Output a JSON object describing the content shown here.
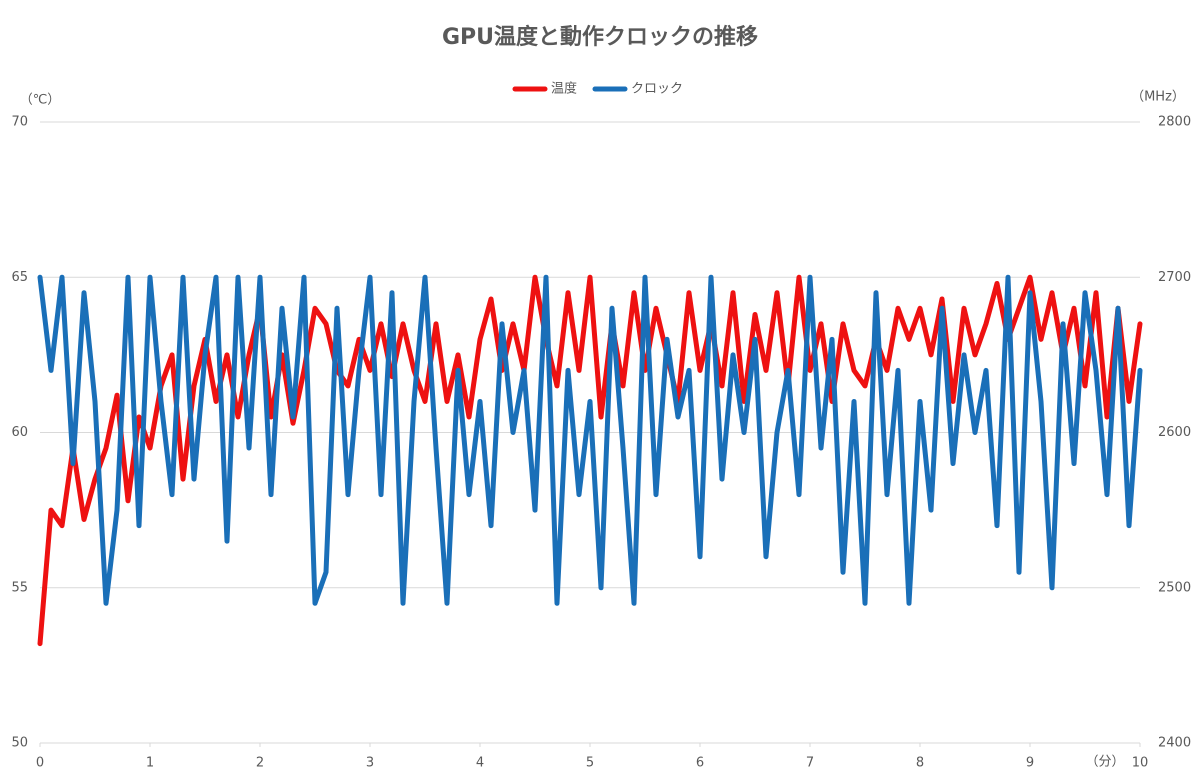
{
  "chart_data": {
    "type": "line",
    "title": "GPU温度と動作クロックの推移",
    "y_label": "（℃）",
    "y2_label": "（MHz）",
    "x_label": "（分）",
    "legend": "top",
    "grid": true,
    "xlim": [
      0,
      10
    ],
    "xticks": [
      0,
      1,
      2,
      3,
      4,
      5,
      6,
      7,
      8,
      9,
      10
    ],
    "ylim": [
      50,
      70
    ],
    "yticks": [
      50,
      55,
      60,
      65,
      70
    ],
    "y2lim": [
      2400,
      2800
    ],
    "y2ticks": [
      2400,
      2500,
      2600,
      2700,
      2800
    ],
    "x": [
      0,
      0.1,
      0.2,
      0.3,
      0.4,
      0.5,
      0.6,
      0.7,
      0.8,
      0.9,
      1,
      1.1,
      1.2,
      1.3,
      1.4,
      1.5,
      1.6,
      1.7,
      1.8,
      1.9,
      2,
      2.1,
      2.2,
      2.3,
      2.4,
      2.5,
      2.6,
      2.7,
      2.8,
      2.9,
      3,
      3.1,
      3.2,
      3.3,
      3.4,
      3.5,
      3.6,
      3.7,
      3.8,
      3.9,
      4,
      4.1,
      4.2,
      4.3,
      4.4,
      4.5,
      4.6,
      4.7,
      4.8,
      4.9,
      5,
      5.1,
      5.2,
      5.3,
      5.4,
      5.5,
      5.6,
      5.7,
      5.8,
      5.9,
      6,
      6.1,
      6.2,
      6.3,
      6.4,
      6.5,
      6.6,
      6.7,
      6.8,
      6.9,
      7,
      7.1,
      7.2,
      7.3,
      7.4,
      7.5,
      7.6,
      7.7,
      7.8,
      7.9,
      8,
      8.1,
      8.2,
      8.3,
      8.4,
      8.5,
      8.6,
      8.7,
      8.8,
      8.9,
      9,
      9.1,
      9.2,
      9.3,
      9.4,
      9.5,
      9.6,
      9.7,
      9.8,
      9.9,
      10
    ],
    "series": [
      {
        "name": "温度",
        "color": "#ee1111",
        "axis": "y",
        "values": [
          53.2,
          57.5,
          57.0,
          59.5,
          57.2,
          58.5,
          59.5,
          61.2,
          57.8,
          60.5,
          59.5,
          61.5,
          62.5,
          58.5,
          61.5,
          63.0,
          61.0,
          62.5,
          60.5,
          62.5,
          64.0,
          60.5,
          62.5,
          60.3,
          62.0,
          64.0,
          63.5,
          62.0,
          61.5,
          63.0,
          62.0,
          63.5,
          61.8,
          63.5,
          62.0,
          61.0,
          63.5,
          61.0,
          62.5,
          60.5,
          63.0,
          64.3,
          62.0,
          63.5,
          62.0,
          65.0,
          63.0,
          61.5,
          64.5,
          62.0,
          65.0,
          60.5,
          63.5,
          61.5,
          64.5,
          62.0,
          64.0,
          62.5,
          61.0,
          64.5,
          62.0,
          63.5,
          61.5,
          64.5,
          61.0,
          63.8,
          62.0,
          64.5,
          61.5,
          65.0,
          62.0,
          63.5,
          61.0,
          63.5,
          62.0,
          61.5,
          63.0,
          62.0,
          64.0,
          63.0,
          64.0,
          62.5,
          64.3,
          61.0,
          64.0,
          62.5,
          63.5,
          64.8,
          63.0,
          64.0,
          65.0,
          63.0,
          64.5,
          62.5,
          64.0,
          61.5,
          64.5,
          60.5,
          64.0,
          61.0,
          63.5
        ]
      },
      {
        "name": "クロック",
        "color": "#1a6fb8",
        "axis": "y2",
        "values": [
          2700,
          2640,
          2700,
          2580,
          2690,
          2620,
          2490,
          2550,
          2700,
          2540,
          2700,
          2620,
          2560,
          2700,
          2570,
          2650,
          2700,
          2530,
          2700,
          2590,
          2700,
          2560,
          2680,
          2610,
          2700,
          2490,
          2510,
          2680,
          2560,
          2640,
          2700,
          2560,
          2690,
          2490,
          2620,
          2700,
          2590,
          2490,
          2640,
          2560,
          2620,
          2540,
          2670,
          2600,
          2640,
          2550,
          2700,
          2490,
          2640,
          2560,
          2620,
          2500,
          2680,
          2590,
          2490,
          2700,
          2560,
          2660,
          2610,
          2640,
          2520,
          2700,
          2570,
          2650,
          2600,
          2660,
          2520,
          2600,
          2640,
          2560,
          2700,
          2590,
          2660,
          2510,
          2620,
          2490,
          2690,
          2560,
          2640,
          2490,
          2620,
          2550,
          2680,
          2580,
          2650,
          2600,
          2640,
          2540,
          2700,
          2510,
          2690,
          2620,
          2500,
          2670,
          2580,
          2690,
          2640,
          2560,
          2680,
          2540,
          2640
        ]
      }
    ]
  }
}
